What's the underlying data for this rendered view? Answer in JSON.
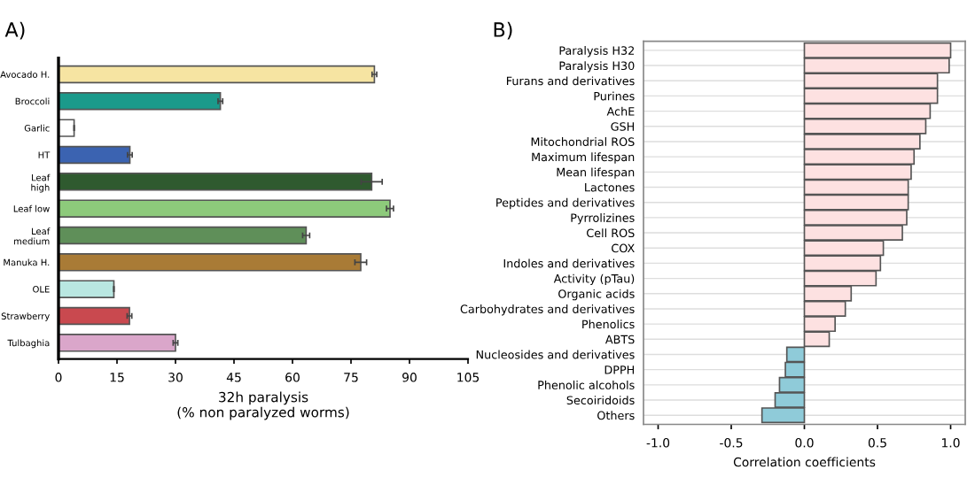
{
  "chart_data": [
    {
      "type": "bar",
      "orientation": "horizontal",
      "title": "A)",
      "xlabel": "32h paralysis\n(% non paralyzed worms)",
      "categories": [
        "Avocado H.",
        "Broccoli",
        "Garlic",
        "HT",
        "Leaf\nhigh",
        "Leaf low",
        "Leaf\nmedium",
        "Manuka H.",
        "OLE",
        "Strawberry",
        "Tulbaghia"
      ],
      "values": [
        81,
        41.5,
        4,
        18.3,
        80.3,
        85,
        63.5,
        77.5,
        14.2,
        18.2,
        30
      ],
      "errors": [
        0.6,
        0.6,
        null,
        0.6,
        2.7,
        0.9,
        0.9,
        1.5,
        null,
        0.6,
        0.6
      ],
      "colors": [
        "#f6e4a2",
        "#1b9a8b",
        "#ffffff",
        "#3b63b1",
        "#2f5a2f",
        "#8dca7b",
        "#5f8f59",
        "#a97b36",
        "#b9e7e1",
        "#c9494f",
        "#daa6ca"
      ],
      "xlim": [
        0,
        105
      ],
      "xticks": [
        0,
        15,
        30,
        45,
        60,
        75,
        90,
        105
      ],
      "grid": false
    },
    {
      "type": "bar",
      "orientation": "horizontal",
      "title": "B)",
      "xlabel": "Correlation coefficients",
      "categories": [
        "Paralysis H32",
        "Paralysis H30",
        "Furans and derivatives",
        "Purines",
        "AchE",
        "GSH",
        "Mitochondrial ROS",
        "Maximum lifespan",
        "Mean lifespan",
        "Lactones",
        "Peptides and derivatives",
        "Pyrrolizines",
        "Cell ROS",
        "COX",
        "Indoles and derivatives",
        "Activity (pTau)",
        "Organic acids",
        "Carbohydrates and derivatives",
        "Phenolics",
        "ABTS",
        "Nucleosides and derivatives",
        "DPPH",
        "Phenolic alcohols",
        "Secoiridoids",
        "Others"
      ],
      "values": [
        1.0,
        0.99,
        0.91,
        0.91,
        0.86,
        0.83,
        0.79,
        0.75,
        0.73,
        0.71,
        0.71,
        0.7,
        0.67,
        0.54,
        0.52,
        0.49,
        0.32,
        0.28,
        0.21,
        0.17,
        -0.12,
        -0.13,
        -0.17,
        -0.2,
        -0.29
      ],
      "colors": [
        "#fde1e1",
        "#fde1e1",
        "#fde1e1",
        "#fde1e1",
        "#fde1e1",
        "#fde1e1",
        "#fde1e1",
        "#fde1e1",
        "#fde1e1",
        "#fde1e1",
        "#fde1e1",
        "#fde1e1",
        "#fde1e1",
        "#fde1e1",
        "#fde1e1",
        "#fde1e1",
        "#fde1e1",
        "#fde1e1",
        "#fde1e1",
        "#fde1e1",
        "#8fcbd9",
        "#8fcbd9",
        "#8fcbd9",
        "#8fcbd9",
        "#8fcbd9"
      ],
      "xlim": [
        -1.1,
        1.1
      ],
      "xticks": [
        {
          "value": -1.0,
          "label": "-1.0"
        },
        {
          "value": -0.5,
          "label": "-0.5"
        },
        {
          "value": 0.0,
          "label": "0.0"
        },
        {
          "value": 0.5,
          "label": "0.5"
        },
        {
          "value": 1.0,
          "label": "1.0"
        }
      ],
      "grid": "y"
    }
  ]
}
